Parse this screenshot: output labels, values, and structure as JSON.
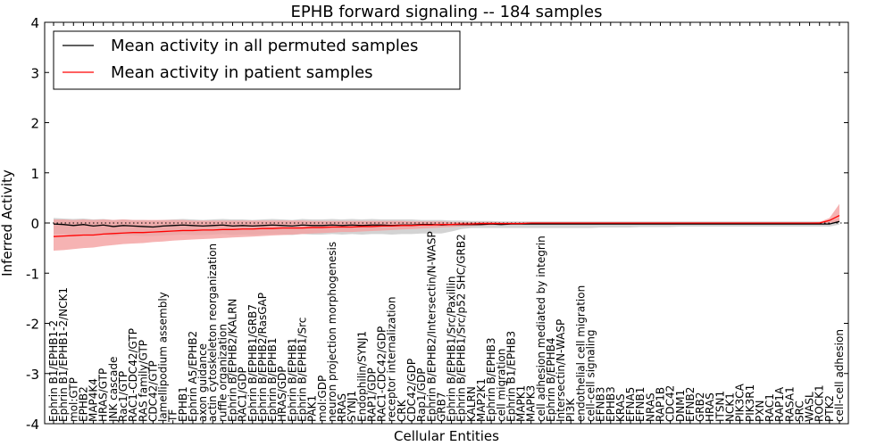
{
  "chart_data": {
    "type": "line",
    "title": "EPHB forward signaling -- 184 samples",
    "xlabel": "Cellular Entities",
    "ylabel": "Inferred Activity",
    "ylim": [
      -4,
      4
    ],
    "yticks": [
      -4,
      -3,
      -2,
      -1,
      0,
      1,
      2,
      3,
      4
    ],
    "grid": false,
    "legend_position": "top-left",
    "colors": {
      "permuted": "#000000",
      "patient": "#ff0000",
      "patient_band": "#f4a0a0",
      "permuted_band": "#c8c8c8"
    },
    "categories": [
      "Ephrin B1/EPHB1-2",
      "Ephrin B1/EPHB1-2/NCK1",
      "mol:GTP",
      "EPHB2",
      "MAP4K4",
      "HRAS/GTP",
      "JNK cascade",
      "Rac1/GTP",
      "RAC1-CDC42/GTP",
      "RAS family/GTP",
      "CDC42/GTP",
      "lamellipodium assembly",
      "TF",
      "EPHB1",
      "Ephrin A5/EPHB2",
      "axon guidance",
      "actin cytoskeleton reorganization",
      "ruffle organization",
      "Ephrin B/EPHB2/KALRN",
      "RAC1/GDP",
      "Ephrin B/EPHB1/GRB7",
      "Ephrin B/EPHB2/RasGAP",
      "Ephrin B/EPHB1",
      "HRAS/GDP",
      "Ephrin B/EPHB1",
      "Ephrin B/EPHB1/Src",
      "PAK1",
      "mol:GDP",
      "neuron projection morphogenesis",
      "RRAS",
      "SYNJ1",
      "Endophilin/SYNJ1",
      "RAP1/GDP",
      "RAC1-CDC42/GDP",
      "receptor internalization",
      "CRK",
      "CDC42/GDP",
      "Rap1/GDP",
      "Ephrin B/EPHB2/Intersectin/N-WASP",
      "GRB7",
      "Ephrin B/EPHB1/Src/Paxillin",
      "Ephrin B/EPHB1/Src/p52 SHC/GRB2",
      "KALRN",
      "MAP2K1",
      "Ephrin B/EPHB3",
      "cell migration",
      "Ephrin B1/EPHB3",
      "MAPK1",
      "MAPK3",
      "cell adhesion mediated by integrin",
      "Ephrin B/EPHB4",
      "Intersectin/N-WASP",
      "PI3K",
      "endothelial cell migration",
      "cell-cell signaling",
      "EFNB3",
      "EPHB3",
      "KRAS",
      "EFNA5",
      "EFNB1",
      "NRAS",
      "RAP1B",
      "CDC42",
      "DNM1",
      "EFNB2",
      "GRB2",
      "HRAS",
      "ITSN1",
      "NCK1",
      "PIK3CA",
      "PIK3R1",
      "PXN",
      "RAC1",
      "RAP1A",
      "RASA1",
      "SRC",
      "WASL",
      "ROCK1",
      "PTK2",
      "cell-cell adhesion"
    ],
    "series": [
      {
        "name": "Mean activity in all permuted samples",
        "color": "#000000",
        "values": [
          -0.02,
          -0.03,
          -0.05,
          -0.03,
          -0.06,
          -0.04,
          -0.07,
          -0.05,
          -0.06,
          -0.07,
          -0.08,
          -0.06,
          -0.05,
          -0.04,
          -0.05,
          -0.06,
          -0.05,
          -0.04,
          -0.06,
          -0.05,
          -0.06,
          -0.05,
          -0.04,
          -0.05,
          -0.06,
          -0.04,
          -0.05,
          -0.05,
          -0.04,
          -0.05,
          -0.04,
          -0.05,
          -0.04,
          -0.04,
          -0.05,
          -0.04,
          -0.04,
          -0.03,
          -0.03,
          -0.04,
          -0.03,
          -0.03,
          -0.03,
          -0.03,
          -0.02,
          -0.03,
          -0.02,
          -0.02,
          -0.02,
          -0.02,
          -0.02,
          -0.02,
          -0.02,
          -0.02,
          -0.02,
          -0.02,
          -0.02,
          -0.02,
          -0.02,
          -0.02,
          -0.02,
          -0.02,
          -0.02,
          -0.02,
          -0.02,
          -0.02,
          -0.02,
          -0.02,
          -0.02,
          -0.02,
          -0.02,
          -0.02,
          -0.02,
          -0.02,
          -0.02,
          -0.02,
          -0.02,
          -0.02,
          -0.02,
          0.03
        ],
        "lower": [
          -0.22,
          -0.22,
          -0.23,
          -0.22,
          -0.25,
          -0.23,
          -0.26,
          -0.24,
          -0.25,
          -0.26,
          -0.26,
          -0.25,
          -0.24,
          -0.23,
          -0.24,
          -0.24,
          -0.23,
          -0.22,
          -0.24,
          -0.23,
          -0.24,
          -0.23,
          -0.22,
          -0.23,
          -0.24,
          -0.22,
          -0.23,
          -0.23,
          -0.22,
          -0.23,
          -0.22,
          -0.23,
          -0.22,
          -0.22,
          -0.23,
          -0.22,
          -0.22,
          -0.21,
          -0.21,
          -0.21,
          -0.17,
          -0.12,
          -0.1,
          -0.1,
          -0.1,
          -0.1,
          -0.1,
          -0.1,
          -0.1,
          -0.1,
          -0.1,
          -0.1,
          -0.1,
          -0.1,
          -0.1,
          -0.09,
          -0.09,
          -0.09,
          -0.09,
          -0.08,
          -0.08,
          -0.08,
          -0.08,
          -0.07,
          -0.07,
          -0.07,
          -0.07,
          -0.07,
          -0.07,
          -0.07,
          -0.07,
          -0.07,
          -0.07,
          -0.07,
          -0.07,
          -0.07,
          -0.07,
          -0.07,
          -0.07,
          -0.03
        ],
        "upper": [
          0.1,
          0.09,
          0.08,
          0.09,
          0.07,
          0.08,
          0.06,
          0.07,
          0.06,
          0.06,
          0.05,
          0.06,
          0.07,
          0.08,
          0.07,
          0.06,
          0.07,
          0.08,
          0.07,
          0.07,
          0.06,
          0.07,
          0.08,
          0.07,
          0.06,
          0.08,
          0.07,
          0.07,
          0.08,
          0.07,
          0.08,
          0.07,
          0.08,
          0.07,
          0.07,
          0.07,
          0.07,
          0.06,
          0.06,
          0.06,
          0.05,
          0.05,
          0.04,
          0.04,
          0.04,
          0.03,
          0.03,
          0.03,
          0.03,
          0.03,
          0.03,
          0.03,
          0.03,
          0.03,
          0.03,
          0.03,
          0.03,
          0.03,
          0.03,
          0.03,
          0.03,
          0.03,
          0.03,
          0.03,
          0.03,
          0.03,
          0.03,
          0.03,
          0.03,
          0.03,
          0.03,
          0.03,
          0.03,
          0.03,
          0.03,
          0.03,
          0.03,
          0.03,
          0.03,
          0.1
        ]
      },
      {
        "name": "Mean activity in patient samples",
        "color": "#ff0000",
        "values": [
          -0.27,
          -0.26,
          -0.25,
          -0.24,
          -0.24,
          -0.22,
          -0.21,
          -0.2,
          -0.19,
          -0.19,
          -0.18,
          -0.17,
          -0.16,
          -0.15,
          -0.15,
          -0.14,
          -0.14,
          -0.13,
          -0.13,
          -0.12,
          -0.12,
          -0.11,
          -0.11,
          -0.1,
          -0.1,
          -0.1,
          -0.09,
          -0.09,
          -0.08,
          -0.08,
          -0.08,
          -0.07,
          -0.07,
          -0.06,
          -0.06,
          -0.05,
          -0.05,
          -0.04,
          -0.04,
          -0.03,
          -0.03,
          -0.02,
          -0.02,
          -0.01,
          -0.01,
          -0.01,
          -0.01,
          -0.01,
          0.0,
          0.0,
          0.0,
          0.0,
          0.0,
          0.0,
          0.0,
          0.0,
          0.0,
          0.0,
          0.0,
          0.0,
          0.0,
          0.0,
          0.0,
          0.0,
          0.0,
          0.0,
          0.0,
          0.0,
          0.0,
          0.0,
          0.0,
          0.0,
          0.0,
          0.0,
          0.0,
          0.0,
          0.0,
          0.0,
          0.05,
          0.15
        ],
        "lower": [
          -0.55,
          -0.54,
          -0.52,
          -0.5,
          -0.49,
          -0.46,
          -0.44,
          -0.42,
          -0.41,
          -0.4,
          -0.38,
          -0.37,
          -0.35,
          -0.34,
          -0.33,
          -0.32,
          -0.31,
          -0.3,
          -0.29,
          -0.28,
          -0.27,
          -0.26,
          -0.25,
          -0.24,
          -0.23,
          -0.22,
          -0.21,
          -0.2,
          -0.19,
          -0.18,
          -0.18,
          -0.17,
          -0.16,
          -0.15,
          -0.14,
          -0.13,
          -0.12,
          -0.11,
          -0.1,
          -0.09,
          -0.08,
          -0.07,
          -0.06,
          -0.05,
          -0.04,
          -0.03,
          -0.03,
          -0.02,
          -0.02,
          -0.02,
          -0.01,
          -0.01,
          -0.01,
          -0.01,
          -0.01,
          -0.01,
          -0.01,
          -0.01,
          -0.01,
          -0.01,
          -0.01,
          -0.01,
          -0.01,
          -0.01,
          -0.01,
          -0.01,
          -0.01,
          -0.01,
          -0.01,
          -0.01,
          -0.01,
          -0.01,
          -0.01,
          -0.01,
          -0.01,
          -0.01,
          -0.01,
          -0.01,
          0.0,
          0.02
        ],
        "upper": [
          0.07,
          0.07,
          0.06,
          0.07,
          0.06,
          0.07,
          0.06,
          0.07,
          0.06,
          0.06,
          0.06,
          0.06,
          0.06,
          0.06,
          0.05,
          0.05,
          0.05,
          0.05,
          0.05,
          0.05,
          0.05,
          0.05,
          0.05,
          0.05,
          0.05,
          0.05,
          0.04,
          0.04,
          0.04,
          0.04,
          0.04,
          0.04,
          0.04,
          0.04,
          0.04,
          0.04,
          0.03,
          0.03,
          0.03,
          0.03,
          0.02,
          0.02,
          0.02,
          0.02,
          0.02,
          0.01,
          0.01,
          0.01,
          0.01,
          0.01,
          0.01,
          0.01,
          0.01,
          0.01,
          0.01,
          0.01,
          0.01,
          0.01,
          0.01,
          0.01,
          0.01,
          0.01,
          0.01,
          0.01,
          0.01,
          0.01,
          0.01,
          0.01,
          0.01,
          0.01,
          0.01,
          0.01,
          0.01,
          0.01,
          0.01,
          0.01,
          0.01,
          0.02,
          0.1,
          0.38
        ]
      }
    ],
    "y_labels": [
      "-4",
      "-3",
      "-2",
      "-1",
      "0",
      "1",
      "2",
      "3",
      "4"
    ]
  }
}
